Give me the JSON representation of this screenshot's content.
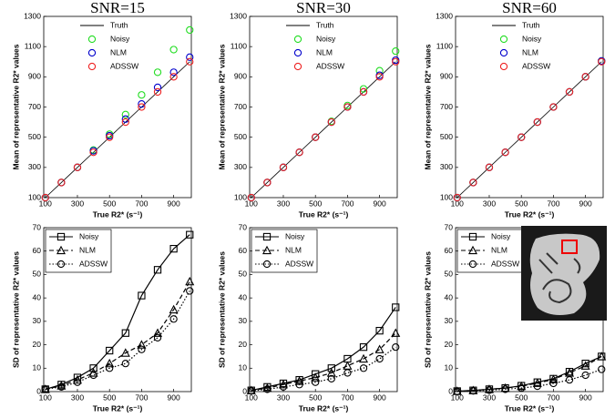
{
  "chart_data": [
    {
      "type": "scatter",
      "title": "SNR=15",
      "xlabel": "True R2* (s⁻¹)",
      "ylabel": "Mean of representative R2* values",
      "x": [
        100,
        200,
        300,
        400,
        500,
        600,
        700,
        800,
        900,
        1000
      ],
      "xlim": [
        90,
        1010
      ],
      "xticks": [
        100,
        300,
        500,
        700,
        900
      ],
      "ylim": [
        100,
        1300
      ],
      "yticks": [
        100,
        300,
        500,
        700,
        900,
        1100,
        1300
      ],
      "legend": "upper left",
      "legend_frame": false,
      "series": [
        {
          "name": "Truth",
          "color": "#000000",
          "style": "line",
          "values": [
            100,
            200,
            300,
            400,
            500,
            600,
            700,
            800,
            900,
            1000
          ]
        },
        {
          "name": "Noisy",
          "color": "#22dd22",
          "style": "circle",
          "values": [
            100,
            200,
            300,
            415,
            520,
            650,
            780,
            930,
            1080,
            1210
          ]
        },
        {
          "name": "NLM",
          "color": "#0000cc",
          "style": "circle",
          "values": [
            100,
            200,
            300,
            410,
            510,
            620,
            720,
            830,
            930,
            1030
          ]
        },
        {
          "name": "ADSSW",
          "color": "#ee2222",
          "style": "circle",
          "values": [
            100,
            200,
            300,
            400,
            500,
            600,
            700,
            800,
            900,
            1000
          ]
        }
      ]
    },
    {
      "type": "scatter",
      "title": "SNR=30",
      "xlabel": "True R2* (s⁻¹)",
      "ylabel": "Mean of representative R2* values",
      "x": [
        100,
        200,
        300,
        400,
        500,
        600,
        700,
        800,
        900,
        1000
      ],
      "xlim": [
        90,
        1010
      ],
      "xticks": [
        100,
        300,
        500,
        700,
        900
      ],
      "ylim": [
        100,
        1300
      ],
      "yticks": [
        100,
        300,
        500,
        700,
        900,
        1100,
        1300
      ],
      "legend": "upper left",
      "legend_frame": false,
      "series": [
        {
          "name": "Truth",
          "color": "#000000",
          "style": "line",
          "values": [
            100,
            200,
            300,
            400,
            500,
            600,
            700,
            800,
            900,
            1000
          ]
        },
        {
          "name": "Noisy",
          "color": "#22dd22",
          "style": "circle",
          "values": [
            100,
            200,
            300,
            400,
            500,
            605,
            710,
            820,
            940,
            1070
          ]
        },
        {
          "name": "NLM",
          "color": "#0000cc",
          "style": "circle",
          "values": [
            100,
            200,
            300,
            400,
            500,
            600,
            700,
            800,
            910,
            1010
          ]
        },
        {
          "name": "ADSSW",
          "color": "#ee2222",
          "style": "circle",
          "values": [
            100,
            200,
            300,
            400,
            500,
            600,
            700,
            800,
            900,
            1000
          ]
        }
      ]
    },
    {
      "type": "scatter",
      "title": "SNR=60",
      "xlabel": "True R2* (s⁻¹)",
      "ylabel": "Mean of representative R2* values",
      "x": [
        100,
        200,
        300,
        400,
        500,
        600,
        700,
        800,
        900,
        1000
      ],
      "xlim": [
        90,
        1010
      ],
      "xticks": [
        100,
        300,
        500,
        700,
        900
      ],
      "ylim": [
        100,
        1300
      ],
      "yticks": [
        100,
        300,
        500,
        700,
        900,
        1100,
        1300
      ],
      "legend": "upper left",
      "legend_frame": false,
      "series": [
        {
          "name": "Truth",
          "color": "#000000",
          "style": "line",
          "values": [
            100,
            200,
            300,
            400,
            500,
            600,
            700,
            800,
            900,
            1000
          ]
        },
        {
          "name": "Noisy",
          "color": "#22dd22",
          "style": "circle",
          "values": [
            100,
            200,
            300,
            400,
            500,
            600,
            700,
            800,
            900,
            1005
          ]
        },
        {
          "name": "NLM",
          "color": "#0000cc",
          "style": "circle",
          "values": [
            100,
            200,
            300,
            400,
            500,
            600,
            700,
            800,
            900,
            1005
          ]
        },
        {
          "name": "ADSSW",
          "color": "#ee2222",
          "style": "circle",
          "values": [
            100,
            200,
            300,
            400,
            500,
            600,
            700,
            800,
            900,
            1000
          ]
        }
      ]
    },
    {
      "type": "line",
      "xlabel": "True R2* (s⁻¹)",
      "ylabel": "SD of representative R2* values",
      "x": [
        100,
        200,
        300,
        400,
        500,
        600,
        700,
        800,
        900,
        1000
      ],
      "xlim": [
        90,
        1010
      ],
      "xticks": [
        100,
        300,
        500,
        700,
        900
      ],
      "ylim": [
        0,
        70
      ],
      "yticks": [
        0,
        10,
        20,
        30,
        40,
        50,
        60,
        70
      ],
      "legend": "upper left",
      "legend_frame": true,
      "series": [
        {
          "name": "Noisy",
          "color": "#000000",
          "marker": "square",
          "dash": "solid",
          "values": [
            1,
            3,
            6,
            10,
            17.5,
            25,
            41,
            52,
            61,
            67
          ]
        },
        {
          "name": "NLM",
          "color": "#000000",
          "marker": "triangle",
          "dash": "dashed",
          "values": [
            1,
            2.5,
            5,
            8,
            12,
            16.5,
            20,
            25,
            35,
            47
          ]
        },
        {
          "name": "ADSSW",
          "color": "#000000",
          "marker": "circle",
          "dash": "dotted",
          "values": [
            1,
            2,
            4,
            7,
            10,
            12,
            18,
            23,
            31,
            43
          ]
        }
      ]
    },
    {
      "type": "line",
      "xlabel": "True R2* (s⁻¹)",
      "ylabel": "SD of representative R2* values",
      "x": [
        100,
        200,
        300,
        400,
        500,
        600,
        700,
        800,
        900,
        1000
      ],
      "xlim": [
        90,
        1010
      ],
      "xticks": [
        100,
        300,
        500,
        700,
        900
      ],
      "ylim": [
        0,
        70
      ],
      "yticks": [
        0,
        10,
        20,
        30,
        40,
        50,
        60,
        70
      ],
      "legend": "upper left",
      "legend_frame": true,
      "series": [
        {
          "name": "Noisy",
          "color": "#000000",
          "marker": "square",
          "dash": "solid",
          "values": [
            0.5,
            2,
            3.5,
            5,
            7.5,
            10,
            14,
            19,
            26,
            36
          ]
        },
        {
          "name": "NLM",
          "color": "#000000",
          "marker": "triangle",
          "dash": "dashed",
          "values": [
            0.5,
            1.5,
            3,
            4.5,
            6,
            8,
            11,
            14,
            18,
            25
          ]
        },
        {
          "name": "ADSSW",
          "color": "#000000",
          "marker": "circle",
          "dash": "dotted",
          "values": [
            0.3,
            1,
            2,
            3,
            4,
            5.5,
            8,
            10,
            14,
            19
          ]
        }
      ]
    },
    {
      "type": "line",
      "xlabel": "True R2* (s⁻¹)",
      "ylabel": "SD of representative R2* values",
      "x": [
        100,
        200,
        300,
        400,
        500,
        600,
        700,
        800,
        900,
        1000
      ],
      "xlim": [
        90,
        1010
      ],
      "xticks": [
        100,
        300,
        500,
        700,
        900
      ],
      "ylim": [
        0,
        70
      ],
      "yticks": [
        0,
        10,
        20,
        30,
        40,
        50,
        60,
        70
      ],
      "legend": "upper left",
      "legend_frame": true,
      "series": [
        {
          "name": "Noisy",
          "color": "#000000",
          "marker": "square",
          "dash": "solid",
          "values": [
            0.2,
            0.5,
            1,
            1.5,
            2.5,
            4,
            5.5,
            8.5,
            12,
            15
          ]
        },
        {
          "name": "NLM",
          "color": "#000000",
          "marker": "triangle",
          "dash": "dashed",
          "values": [
            0.2,
            0.5,
            1,
            1.5,
            2.3,
            3.6,
            5.2,
            8,
            11,
            15
          ]
        },
        {
          "name": "ADSSW",
          "color": "#000000",
          "marker": "circle",
          "dash": "dotted",
          "values": [
            0.1,
            0.3,
            0.6,
            1,
            1.5,
            2.3,
            3.5,
            5,
            7,
            9.5
          ]
        }
      ]
    }
  ]
}
